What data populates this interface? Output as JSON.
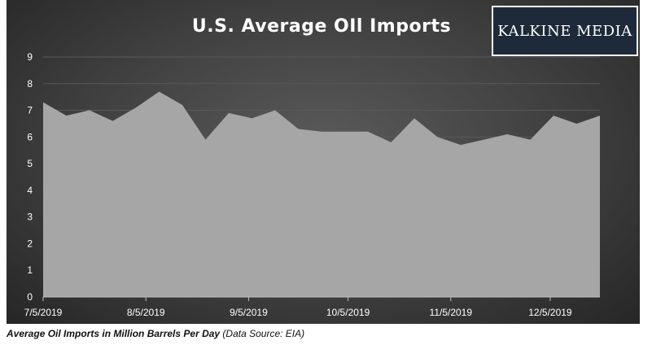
{
  "caption": {
    "main": "Average Oil Imports in Million Barrels Per Day",
    "source": " (Data Source: EIA)"
  },
  "logo": {
    "text": "KALKINE MEDIA"
  },
  "colors": {
    "background": "#3f3f3f",
    "area_fill": "#a6a6a6",
    "grid": "#595959",
    "text": "#ffffff"
  },
  "chart_data": {
    "type": "area",
    "title": "U.S. Average OIl Imports",
    "xlabel": "",
    "ylabel": "",
    "ylim": [
      0,
      9
    ],
    "yticks": [
      0,
      1,
      2,
      3,
      4,
      5,
      6,
      7,
      8,
      9
    ],
    "grid": true,
    "legend": "none",
    "x_tick_labels": [
      "7/5/2019",
      "8/5/2019",
      "9/5/2019",
      "10/5/2019",
      "11/5/2019",
      "12/5/2019"
    ],
    "x": [
      "7/5/2019",
      "7/12/2019",
      "7/19/2019",
      "7/26/2019",
      "8/2/2019",
      "8/9/2019",
      "8/16/2019",
      "8/23/2019",
      "8/30/2019",
      "9/6/2019",
      "9/13/2019",
      "9/20/2019",
      "9/27/2019",
      "10/4/2019",
      "10/11/2019",
      "10/18/2019",
      "10/25/2019",
      "11/1/2019",
      "11/8/2019",
      "11/15/2019",
      "11/22/2019",
      "11/29/2019",
      "12/6/2019",
      "12/13/2019",
      "12/20/2019"
    ],
    "values": [
      7.3,
      6.8,
      7.0,
      6.6,
      7.1,
      7.7,
      7.2,
      5.9,
      6.9,
      6.7,
      7.0,
      6.3,
      6.2,
      6.2,
      6.2,
      5.8,
      6.7,
      6.0,
      5.7,
      5.9,
      6.1,
      5.9,
      6.8,
      6.5,
      6.8
    ]
  }
}
